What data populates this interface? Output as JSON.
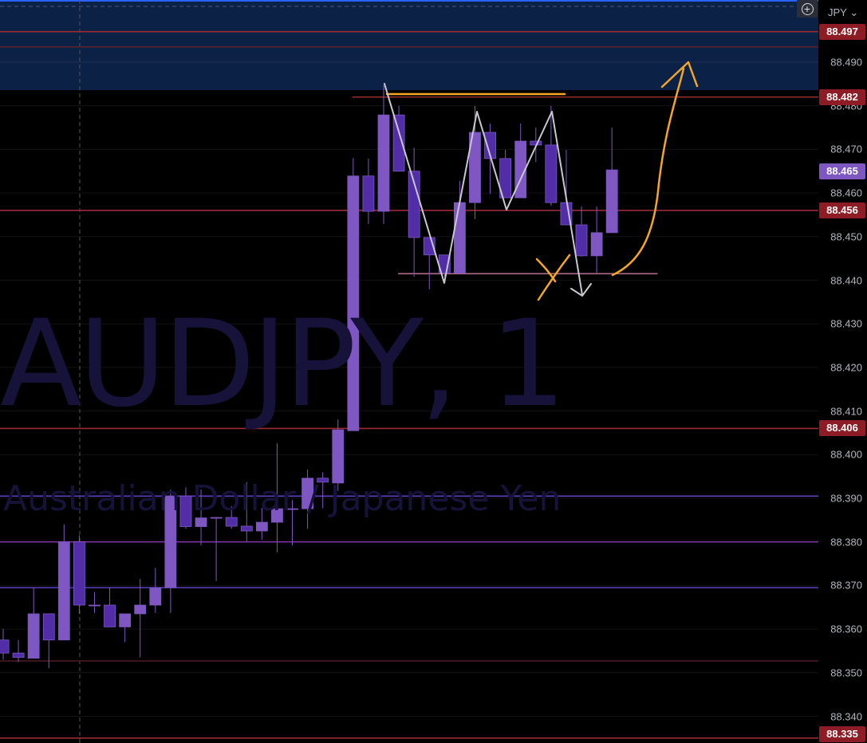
{
  "chart_data": {
    "type": "candlestick",
    "watermark_symbol": "AUDJPY, 1",
    "watermark_description": "Australian Dollar / Japanese Yen",
    "currency": "JPY",
    "ylim": [
      88.3343,
      88.5043
    ],
    "y_ticks": [
      "88.490",
      "88.480",
      "88.470",
      "88.460",
      "88.450",
      "88.440",
      "88.430",
      "88.420",
      "88.410",
      "88.400",
      "88.390",
      "88.380",
      "88.370",
      "88.360",
      "88.350",
      "88.340"
    ],
    "price_tags": [
      {
        "value": "88.497",
        "color": "#8e1c24"
      },
      {
        "value": "88.482",
        "color": "#8e1c24"
      },
      {
        "value": "88.465",
        "color": "#7e57c2"
      },
      {
        "value": "88.456",
        "color": "#8e1c24"
      },
      {
        "value": "88.406",
        "color": "#8e1c24"
      },
      {
        "value": "88.335",
        "color": "#8e1c24"
      }
    ],
    "colors": {
      "bull": "#7e57c2",
      "bear": "#512da8",
      "background": "#000000",
      "zone": "#0b2146"
    },
    "zone": {
      "from": 88.4836,
      "to": 88.5043
    },
    "levels": [
      {
        "price": 88.497,
        "color": "#9c2a32"
      },
      {
        "price": 88.4935,
        "color": "#5a1f2a"
      },
      {
        "price": 88.482,
        "color": "#9c2a32",
        "from_candle": 24
      },
      {
        "price": 88.456,
        "color": "#9c2a32"
      },
      {
        "price": 88.406,
        "color": "#9c2a32"
      },
      {
        "price": 88.3905,
        "color": "#5b3fc0"
      },
      {
        "price": 88.38,
        "color": "#7b2f9e"
      },
      {
        "price": 88.3695,
        "color": "#5b3fc0"
      },
      {
        "price": 88.3527,
        "color": "#4a1a22"
      },
      {
        "price": 88.335,
        "color": "#9c2a32"
      },
      {
        "price": 88.4415,
        "color": "#b06a8a",
        "from_candle": 27,
        "to_candle": 43
      }
    ],
    "candles": [
      {
        "o": 88.3575,
        "h": 88.36,
        "l": 88.353,
        "c": 88.3545
      },
      {
        "o": 88.3545,
        "h": 88.3575,
        "l": 88.3525,
        "c": 88.3535
      },
      {
        "o": 88.3533,
        "h": 88.3695,
        "l": 88.3533,
        "c": 88.3635
      },
      {
        "o": 88.3635,
        "h": 88.3635,
        "l": 88.351,
        "c": 88.3575
      },
      {
        "o": 88.3575,
        "h": 88.384,
        "l": 88.3575,
        "c": 88.38
      },
      {
        "o": 88.38,
        "h": 88.3815,
        "l": 88.3635,
        "c": 88.3655
      },
      {
        "o": 88.3655,
        "h": 88.3685,
        "l": 88.3637,
        "c": 88.3655
      },
      {
        "o": 88.3655,
        "h": 88.3695,
        "l": 88.3605,
        "c": 88.3605
      },
      {
        "o": 88.3605,
        "h": 88.3635,
        "l": 88.357,
        "c": 88.3635
      },
      {
        "o": 88.3635,
        "h": 88.3715,
        "l": 88.3535,
        "c": 88.3655
      },
      {
        "o": 88.3655,
        "h": 88.374,
        "l": 88.3637,
        "c": 88.3695
      },
      {
        "o": 88.3695,
        "h": 88.392,
        "l": 88.3637,
        "c": 88.3905
      },
      {
        "o": 88.3905,
        "h": 88.3925,
        "l": 88.383,
        "c": 88.3835
      },
      {
        "o": 88.3835,
        "h": 88.392,
        "l": 88.3792,
        "c": 88.3855
      },
      {
        "o": 88.3856,
        "h": 88.3856,
        "l": 88.371,
        "c": 88.3856
      },
      {
        "o": 88.3856,
        "h": 88.3882,
        "l": 88.383,
        "c": 88.3836
      },
      {
        "o": 88.3836,
        "h": 88.3937,
        "l": 88.38,
        "c": 88.3825
      },
      {
        "o": 88.3825,
        "h": 88.3878,
        "l": 88.3805,
        "c": 88.3845
      },
      {
        "o": 88.3845,
        "h": 88.4026,
        "l": 88.3776,
        "c": 88.3876
      },
      {
        "o": 88.3876,
        "h": 88.3896,
        "l": 88.3792,
        "c": 88.3876
      },
      {
        "o": 88.3876,
        "h": 88.3966,
        "l": 88.383,
        "c": 88.3946
      },
      {
        "o": 88.3946,
        "h": 88.396,
        "l": 88.3877,
        "c": 88.3937
      },
      {
        "o": 88.3935,
        "h": 88.4081,
        "l": 88.3917,
        "c": 88.4057
      },
      {
        "o": 88.4055,
        "h": 88.468,
        "l": 88.4055,
        "c": 88.4639
      },
      {
        "o": 88.4639,
        "h": 88.4679,
        "l": 88.4529,
        "c": 88.4558
      },
      {
        "o": 88.4558,
        "h": 88.4847,
        "l": 88.4529,
        "c": 88.4779
      },
      {
        "o": 88.4779,
        "h": 88.48,
        "l": 88.465,
        "c": 88.465
      },
      {
        "o": 88.465,
        "h": 88.4704,
        "l": 88.4408,
        "c": 88.4498
      },
      {
        "o": 88.4498,
        "h": 88.4498,
        "l": 88.4379,
        "c": 88.4458
      },
      {
        "o": 88.4458,
        "h": 88.4458,
        "l": 88.4408,
        "c": 88.4416
      },
      {
        "o": 88.4416,
        "h": 88.4628,
        "l": 88.4416,
        "c": 88.4578
      },
      {
        "o": 88.4578,
        "h": 88.48,
        "l": 88.454,
        "c": 88.4739
      },
      {
        "o": 88.4739,
        "h": 88.4759,
        "l": 88.4598,
        "c": 88.4679
      },
      {
        "o": 88.4679,
        "h": 88.4699,
        "l": 88.4589,
        "c": 88.4589
      },
      {
        "o": 88.4589,
        "h": 88.4759,
        "l": 88.4589,
        "c": 88.4719
      },
      {
        "o": 88.4719,
        "h": 88.475,
        "l": 88.4671,
        "c": 88.471
      },
      {
        "o": 88.471,
        "h": 88.48,
        "l": 88.4571,
        "c": 88.4578
      },
      {
        "o": 88.4578,
        "h": 88.4699,
        "l": 88.4527,
        "c": 88.4527
      },
      {
        "o": 88.4527,
        "h": 88.4569,
        "l": 88.4454,
        "c": 88.4456
      },
      {
        "o": 88.4456,
        "h": 88.4569,
        "l": 88.4417,
        "c": 88.4509
      },
      {
        "o": 88.4509,
        "h": 88.475,
        "l": 88.4509,
        "c": 88.4653
      }
    ]
  }
}
